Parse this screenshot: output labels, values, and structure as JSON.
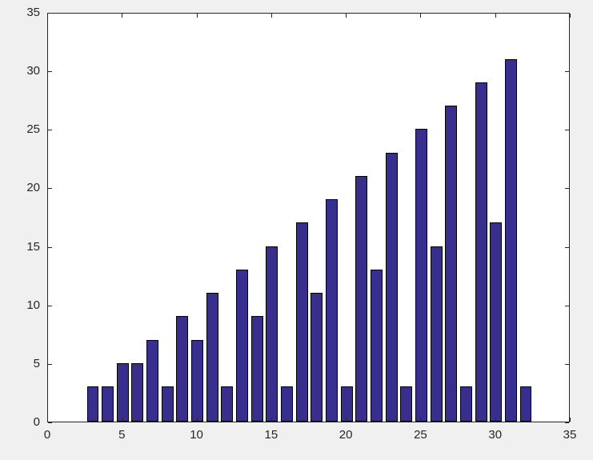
{
  "figure": {
    "background_color": "#f0f0f0",
    "plot_background_color": "#ffffff",
    "axis_color": "#262626",
    "tick_label_color": "#262626"
  },
  "chart_data": {
    "type": "bar",
    "title": "",
    "xlabel": "",
    "ylabel": "",
    "x": [
      3,
      4,
      5,
      6,
      7,
      8,
      9,
      10,
      11,
      12,
      13,
      14,
      15,
      16,
      17,
      18,
      19,
      20,
      21,
      22,
      23,
      24,
      25,
      26,
      27,
      28,
      29,
      30,
      31,
      32
    ],
    "values": [
      3,
      3,
      5,
      5,
      7,
      3,
      9,
      7,
      11,
      3,
      13,
      9,
      15,
      3,
      17,
      11,
      19,
      3,
      21,
      13,
      23,
      3,
      25,
      15,
      27,
      3,
      29,
      17,
      31,
      3
    ],
    "bar_width_units": 0.8,
    "bar_fill_color": "#372e8d",
    "bar_edge_color": "#000000",
    "xlim": [
      0,
      35
    ],
    "ylim": [
      0,
      35
    ],
    "xticks": [
      0,
      5,
      10,
      15,
      20,
      25,
      30,
      35
    ],
    "yticks": [
      0,
      5,
      10,
      15,
      20,
      25,
      30,
      35
    ],
    "xtick_labels": [
      "0",
      "5",
      "10",
      "15",
      "20",
      "25",
      "30",
      "35"
    ],
    "ytick_labels": [
      "0",
      "5",
      "10",
      "15",
      "20",
      "25",
      "30",
      "35"
    ],
    "grid": false,
    "legend": null,
    "box": true,
    "tick_direction": "in"
  }
}
